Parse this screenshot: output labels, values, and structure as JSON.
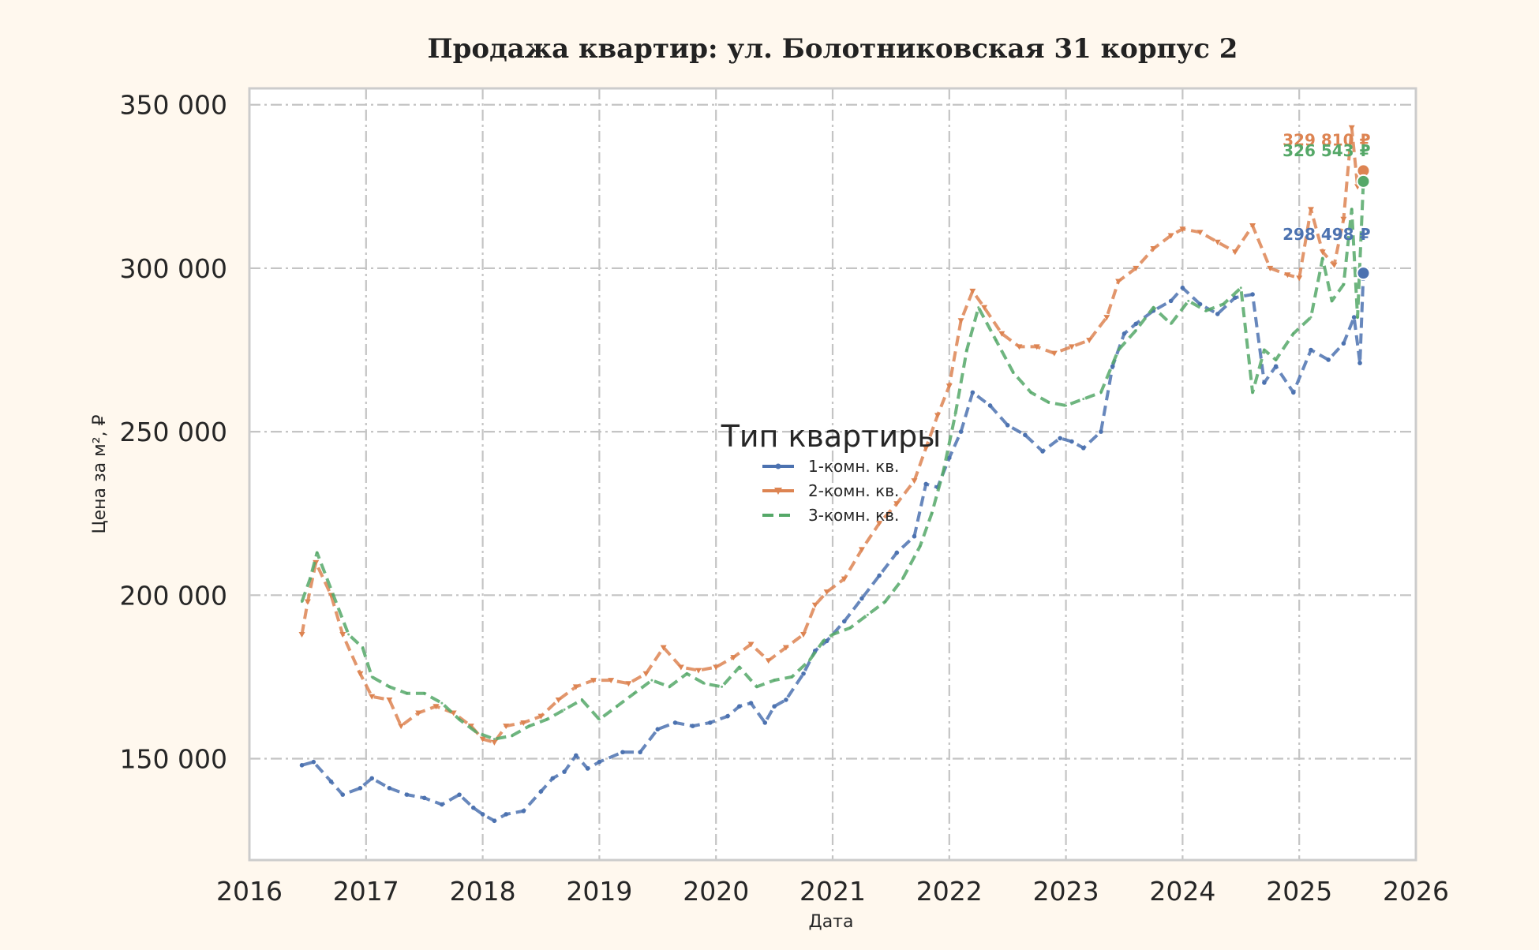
{
  "chart_data": {
    "type": "line",
    "title": "Продажа квартир: ул. Болотниковская 31 корпус 2",
    "xlabel": "Дата",
    "ylabel": "Цена за м², ₽",
    "xlim": [
      2016,
      2026
    ],
    "ylim": [
      119000,
      355000
    ],
    "x_ticks": [
      "2016",
      "2017",
      "2018",
      "2019",
      "2020",
      "2021",
      "2022",
      "2023",
      "2024",
      "2025",
      "2026"
    ],
    "y_ticks": [
      {
        "value": 150000,
        "label": "150 000"
      },
      {
        "value": 200000,
        "label": "200 000"
      },
      {
        "value": 250000,
        "label": "250 000"
      },
      {
        "value": 300000,
        "label": "300 000"
      },
      {
        "value": 350000,
        "label": "350 000"
      }
    ],
    "grid": true,
    "legend": {
      "title": "Тип квартиры",
      "placement": "center"
    },
    "colors": {
      "background": "#fff8ee",
      "plot_bg": "#ffffff",
      "grid": "#c4c4c4",
      "frame": "#cccccc"
    },
    "series": [
      {
        "name": "1-комн. кв.",
        "color": "#4c72b0",
        "marker": "dot",
        "x": [
          2016.45,
          2016.55,
          2016.7,
          2016.8,
          2016.95,
          2017.05,
          2017.2,
          2017.35,
          2017.5,
          2017.65,
          2017.8,
          2017.92,
          2018.0,
          2018.1,
          2018.2,
          2018.35,
          2018.5,
          2018.6,
          2018.7,
          2018.8,
          2018.9,
          2019.0,
          2019.2,
          2019.35,
          2019.5,
          2019.65,
          2019.8,
          2019.95,
          2020.1,
          2020.2,
          2020.3,
          2020.42,
          2020.5,
          2020.6,
          2020.75,
          2020.85,
          2020.95,
          2021.1,
          2021.25,
          2021.4,
          2021.55,
          2021.7,
          2021.8,
          2021.9,
          2022.0,
          2022.1,
          2022.2,
          2022.35,
          2022.5,
          2022.65,
          2022.8,
          2022.95,
          2023.05,
          2023.15,
          2023.3,
          2023.4,
          2023.5,
          2023.6,
          2023.75,
          2023.9,
          2024.0,
          2024.15,
          2024.3,
          2024.45,
          2024.6,
          2024.7,
          2024.8,
          2024.95,
          2025.1,
          2025.25,
          2025.38,
          2025.47,
          2025.52,
          2025.55
        ],
        "y": [
          148000,
          149000,
          143000,
          139000,
          141000,
          144000,
          141000,
          139000,
          138000,
          136000,
          139000,
          135000,
          133000,
          131000,
          133000,
          134000,
          140000,
          144000,
          146000,
          151000,
          147000,
          149000,
          152000,
          152000,
          159000,
          161000,
          160000,
          161000,
          163000,
          166000,
          167000,
          161000,
          166000,
          168000,
          176000,
          183000,
          186000,
          192000,
          199000,
          206000,
          213000,
          218000,
          234000,
          233000,
          242000,
          250000,
          262000,
          258000,
          252000,
          249000,
          244000,
          248000,
          247000,
          245000,
          250000,
          270000,
          280000,
          283000,
          287000,
          290000,
          294000,
          289000,
          286000,
          291000,
          292000,
          265000,
          270000,
          262000,
          275000,
          272000,
          277000,
          285000,
          271000,
          298498
        ]
      },
      {
        "name": "2-комн. кв.",
        "color": "#dd8452",
        "marker": "triangle",
        "x": [
          2016.45,
          2016.5,
          2016.57,
          2016.7,
          2016.8,
          2016.95,
          2017.05,
          2017.2,
          2017.3,
          2017.45,
          2017.6,
          2017.75,
          2017.9,
          2018.0,
          2018.1,
          2018.2,
          2018.35,
          2018.5,
          2018.65,
          2018.8,
          2018.95,
          2019.1,
          2019.25,
          2019.4,
          2019.55,
          2019.7,
          2019.85,
          2020.0,
          2020.15,
          2020.3,
          2020.45,
          2020.6,
          2020.75,
          2020.85,
          2020.95,
          2021.1,
          2021.25,
          2021.4,
          2021.55,
          2021.7,
          2021.8,
          2021.9,
          2022.0,
          2022.1,
          2022.2,
          2022.3,
          2022.45,
          2022.6,
          2022.75,
          2022.9,
          2023.05,
          2023.2,
          2023.35,
          2023.45,
          2023.6,
          2023.75,
          2023.9,
          2024.0,
          2024.15,
          2024.3,
          2024.45,
          2024.6,
          2024.75,
          2024.9,
          2025.0,
          2025.1,
          2025.2,
          2025.3,
          2025.38,
          2025.45,
          2025.5,
          2025.55
        ],
        "y": [
          188000,
          198000,
          210000,
          200000,
          188000,
          176000,
          169000,
          168000,
          160000,
          164000,
          166000,
          164000,
          160000,
          156000,
          155000,
          160000,
          161000,
          163000,
          168000,
          172000,
          174000,
          174000,
          173000,
          176000,
          184000,
          178000,
          177000,
          178000,
          181000,
          185000,
          180000,
          184000,
          188000,
          197000,
          201000,
          205000,
          214000,
          222000,
          228000,
          235000,
          245000,
          255000,
          264000,
          284000,
          293000,
          288000,
          280000,
          276000,
          276000,
          274000,
          276000,
          278000,
          285000,
          296000,
          300000,
          306000,
          310000,
          312000,
          311000,
          308000,
          305000,
          313000,
          300000,
          298000,
          297000,
          318000,
          305000,
          301000,
          315000,
          343000,
          325000,
          329810
        ]
      },
      {
        "name": "3-комн. кв.",
        "color": "#55a868",
        "marker": "none",
        "x": [
          2016.45,
          2016.52,
          2016.58,
          2016.72,
          2016.85,
          2016.97,
          2017.05,
          2017.2,
          2017.35,
          2017.5,
          2017.65,
          2017.8,
          2017.95,
          2018.1,
          2018.25,
          2018.4,
          2018.55,
          2018.7,
          2018.85,
          2019.0,
          2019.15,
          2019.3,
          2019.45,
          2019.6,
          2019.75,
          2019.9,
          2020.05,
          2020.2,
          2020.35,
          2020.5,
          2020.65,
          2020.8,
          2020.92,
          2021.0,
          2021.15,
          2021.3,
          2021.45,
          2021.6,
          2021.75,
          2021.85,
          2021.95,
          2022.05,
          2022.15,
          2022.25,
          2022.4,
          2022.55,
          2022.7,
          2022.85,
          2023.0,
          2023.15,
          2023.3,
          2023.45,
          2023.6,
          2023.75,
          2023.9,
          2024.05,
          2024.2,
          2024.35,
          2024.5,
          2024.6,
          2024.7,
          2024.8,
          2024.95,
          2025.1,
          2025.2,
          2025.28,
          2025.38,
          2025.45,
          2025.5,
          2025.55
        ],
        "y": [
          198000,
          205000,
          213000,
          200000,
          188000,
          184000,
          175000,
          172000,
          170000,
          170000,
          167000,
          162000,
          158000,
          156000,
          157000,
          160000,
          162000,
          165000,
          168000,
          162000,
          166000,
          170000,
          174000,
          172000,
          176000,
          173000,
          172000,
          178000,
          172000,
          174000,
          175000,
          180000,
          186000,
          188000,
          190000,
          194000,
          198000,
          205000,
          215000,
          225000,
          238000,
          255000,
          275000,
          288000,
          278000,
          268000,
          262000,
          259000,
          258000,
          260000,
          262000,
          275000,
          281000,
          288000,
          283000,
          290000,
          287000,
          289000,
          294000,
          262000,
          275000,
          272000,
          280000,
          285000,
          303000,
          290000,
          295000,
          318000,
          285000,
          326543
        ]
      }
    ],
    "end_labels": [
      {
        "series": "2-комн. кв.",
        "text": "329 810 ₽",
        "value": 329810
      },
      {
        "series": "3-комн. кв.",
        "text": "326 543 ₽",
        "value": 326543
      },
      {
        "series": "1-комн. кв.",
        "text": "298 498 ₽",
        "value": 298498
      }
    ]
  }
}
